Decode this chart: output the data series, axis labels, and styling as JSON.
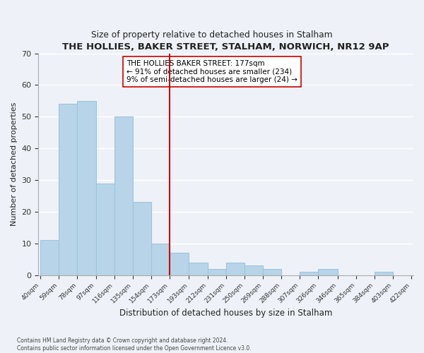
{
  "title": "THE HOLLIES, BAKER STREET, STALHAM, NORWICH, NR12 9AP",
  "subtitle": "Size of property relative to detached houses in Stalham",
  "xlabel": "Distribution of detached houses by size in Stalham",
  "ylabel": "Number of detached properties",
  "bar_values": [
    11,
    54,
    55,
    29,
    50,
    23,
    10,
    7,
    4,
    2,
    4,
    3,
    2,
    0,
    1,
    2,
    0,
    0,
    1,
    0
  ],
  "bin_edges": [
    40,
    59,
    78,
    97,
    116,
    135,
    154,
    173,
    193,
    212,
    231,
    250,
    269,
    288,
    307,
    326,
    346,
    365,
    384,
    403,
    422
  ],
  "tick_labels": [
    "40sqm",
    "59sqm",
    "78sqm",
    "97sqm",
    "116sqm",
    "135sqm",
    "154sqm",
    "173sqm",
    "193sqm",
    "212sqm",
    "231sqm",
    "250sqm",
    "269sqm",
    "288sqm",
    "307sqm",
    "326sqm",
    "346sqm",
    "365sqm",
    "384sqm",
    "403sqm",
    "422sqm"
  ],
  "bar_color": "#b8d4e8",
  "bar_edgecolor": "#9ec4dc",
  "vline_x": 173,
  "vline_color": "#cc0000",
  "annotation_text": "THE HOLLIES BAKER STREET: 177sqm\n← 91% of detached houses are smaller (234)\n9% of semi-detached houses are larger (24) →",
  "annotation_box_facecolor": "#ffffff",
  "annotation_box_edgecolor": "#cc0000",
  "ylim": [
    0,
    70
  ],
  "yticks": [
    0,
    10,
    20,
    30,
    40,
    50,
    60,
    70
  ],
  "footnote": "Contains HM Land Registry data © Crown copyright and database right 2024.\nContains public sector information licensed under the Open Government Licence v3.0.",
  "bg_color": "#eef2f8"
}
